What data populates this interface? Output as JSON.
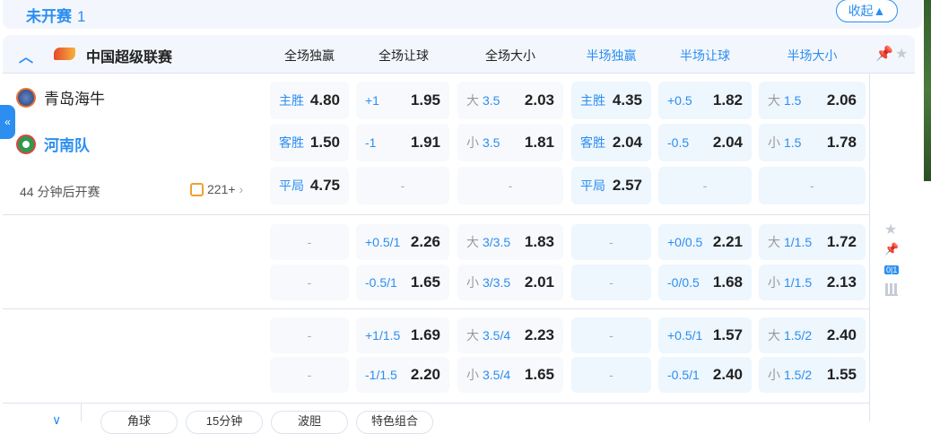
{
  "section": {
    "title": "未开赛",
    "count": "1",
    "collapse_label": "收起▲"
  },
  "league": {
    "name": "中国超级联赛"
  },
  "columns": [
    "全场独赢",
    "全场让球",
    "全场大小",
    "半场独赢",
    "半场让球",
    "半场大小"
  ],
  "match": {
    "home": "青岛海牛",
    "away": "河南队",
    "start": "44 分钟后开赛",
    "more": "221+"
  },
  "rows": [
    [
      [
        "主胜",
        "4.80"
      ],
      [
        "+1",
        "1.95"
      ],
      [
        "大",
        "3.5",
        "2.03"
      ],
      [
        "主胜",
        "4.35"
      ],
      [
        "+0.5",
        "1.82"
      ],
      [
        "大",
        "1.5",
        "2.06"
      ]
    ],
    [
      [
        "客胜",
        "1.50"
      ],
      [
        "-1",
        "1.91"
      ],
      [
        "小",
        "3.5",
        "1.81"
      ],
      [
        "客胜",
        "2.04"
      ],
      [
        "-0.5",
        "2.04"
      ],
      [
        "小",
        "1.5",
        "1.78"
      ]
    ],
    [
      [
        "平局",
        "4.75"
      ],
      null,
      null,
      [
        "平局",
        "2.57"
      ],
      null,
      null
    ],
    [
      null,
      [
        "+0.5/1",
        "2.26"
      ],
      [
        "大",
        "3/3.5",
        "1.83"
      ],
      null,
      [
        "+0/0.5",
        "2.21"
      ],
      [
        "大",
        "1/1.5",
        "1.72"
      ]
    ],
    [
      null,
      [
        "-0.5/1",
        "1.65"
      ],
      [
        "小",
        "3/3.5",
        "2.01"
      ],
      null,
      [
        "-0/0.5",
        "1.68"
      ],
      [
        "小",
        "1/1.5",
        "2.13"
      ]
    ],
    [
      null,
      [
        "+1/1.5",
        "1.69"
      ],
      [
        "大",
        "3.5/4",
        "2.23"
      ],
      null,
      [
        "+0.5/1",
        "1.57"
      ],
      [
        "大",
        "1.5/2",
        "2.40"
      ]
    ],
    [
      null,
      [
        "-1/1.5",
        "2.20"
      ],
      [
        "小",
        "3.5/4",
        "1.65"
      ],
      null,
      [
        "-0.5/1",
        "2.40"
      ],
      [
        "小",
        "1.5/2",
        "1.55"
      ]
    ]
  ],
  "footer_tabs": [
    "角球",
    "15分钟",
    "波胆",
    "特色组合"
  ],
  "score_badge": "0|1",
  "dash": "-",
  "colors": {
    "accent": "#2b8ef0",
    "cell": "#f7f9fc",
    "half_cell": "#eef6fe"
  }
}
